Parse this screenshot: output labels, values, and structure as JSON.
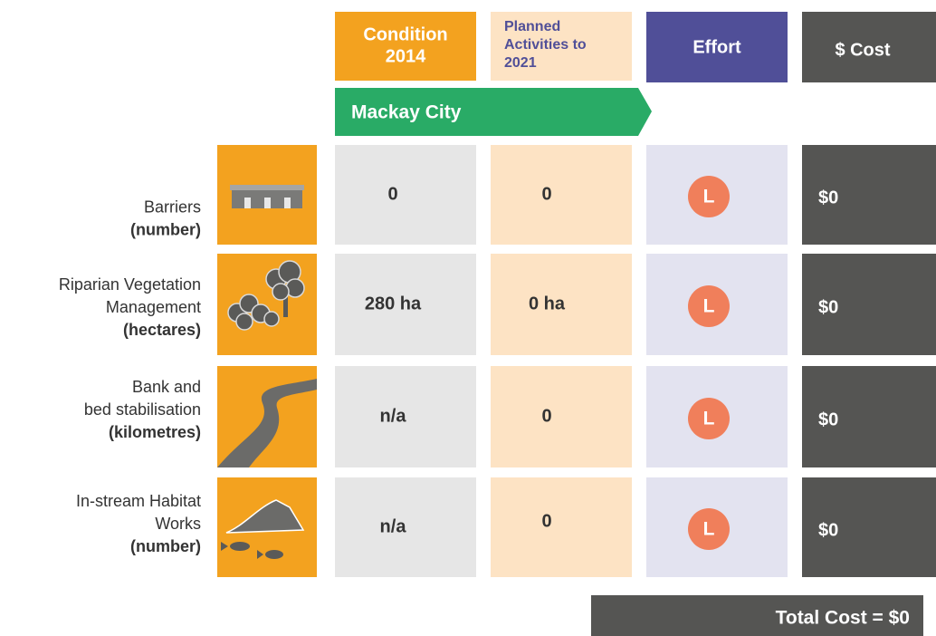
{
  "headers": {
    "condition": [
      "Condition",
      "2014"
    ],
    "planned": [
      "Planned",
      "Activities to",
      "2021"
    ],
    "effort": "Effort",
    "cost": "$ Cost"
  },
  "region": "Mackay City",
  "rows": [
    {
      "label": [
        "Barriers",
        "(number)"
      ],
      "condition": "0",
      "planned": "0",
      "effort": "L",
      "cost": "$0"
    },
    {
      "label": [
        "Riparian Vegetation",
        "Management",
        "(hectares)"
      ],
      "condition": "280 ha",
      "planned": "0 ha",
      "effort": "L",
      "cost": "$0"
    },
    {
      "label": [
        "Bank and",
        "bed stabilisation",
        "(kilometres)"
      ],
      "condition": "n/a",
      "planned": "0",
      "effort": "L",
      "cost": "$0"
    },
    {
      "label": [
        "In-stream Habitat",
        "Works",
        "(number)"
      ],
      "condition": "n/a",
      "planned": "0",
      "effort": "L",
      "cost": "$0"
    }
  ],
  "total": "Total Cost = $0"
}
